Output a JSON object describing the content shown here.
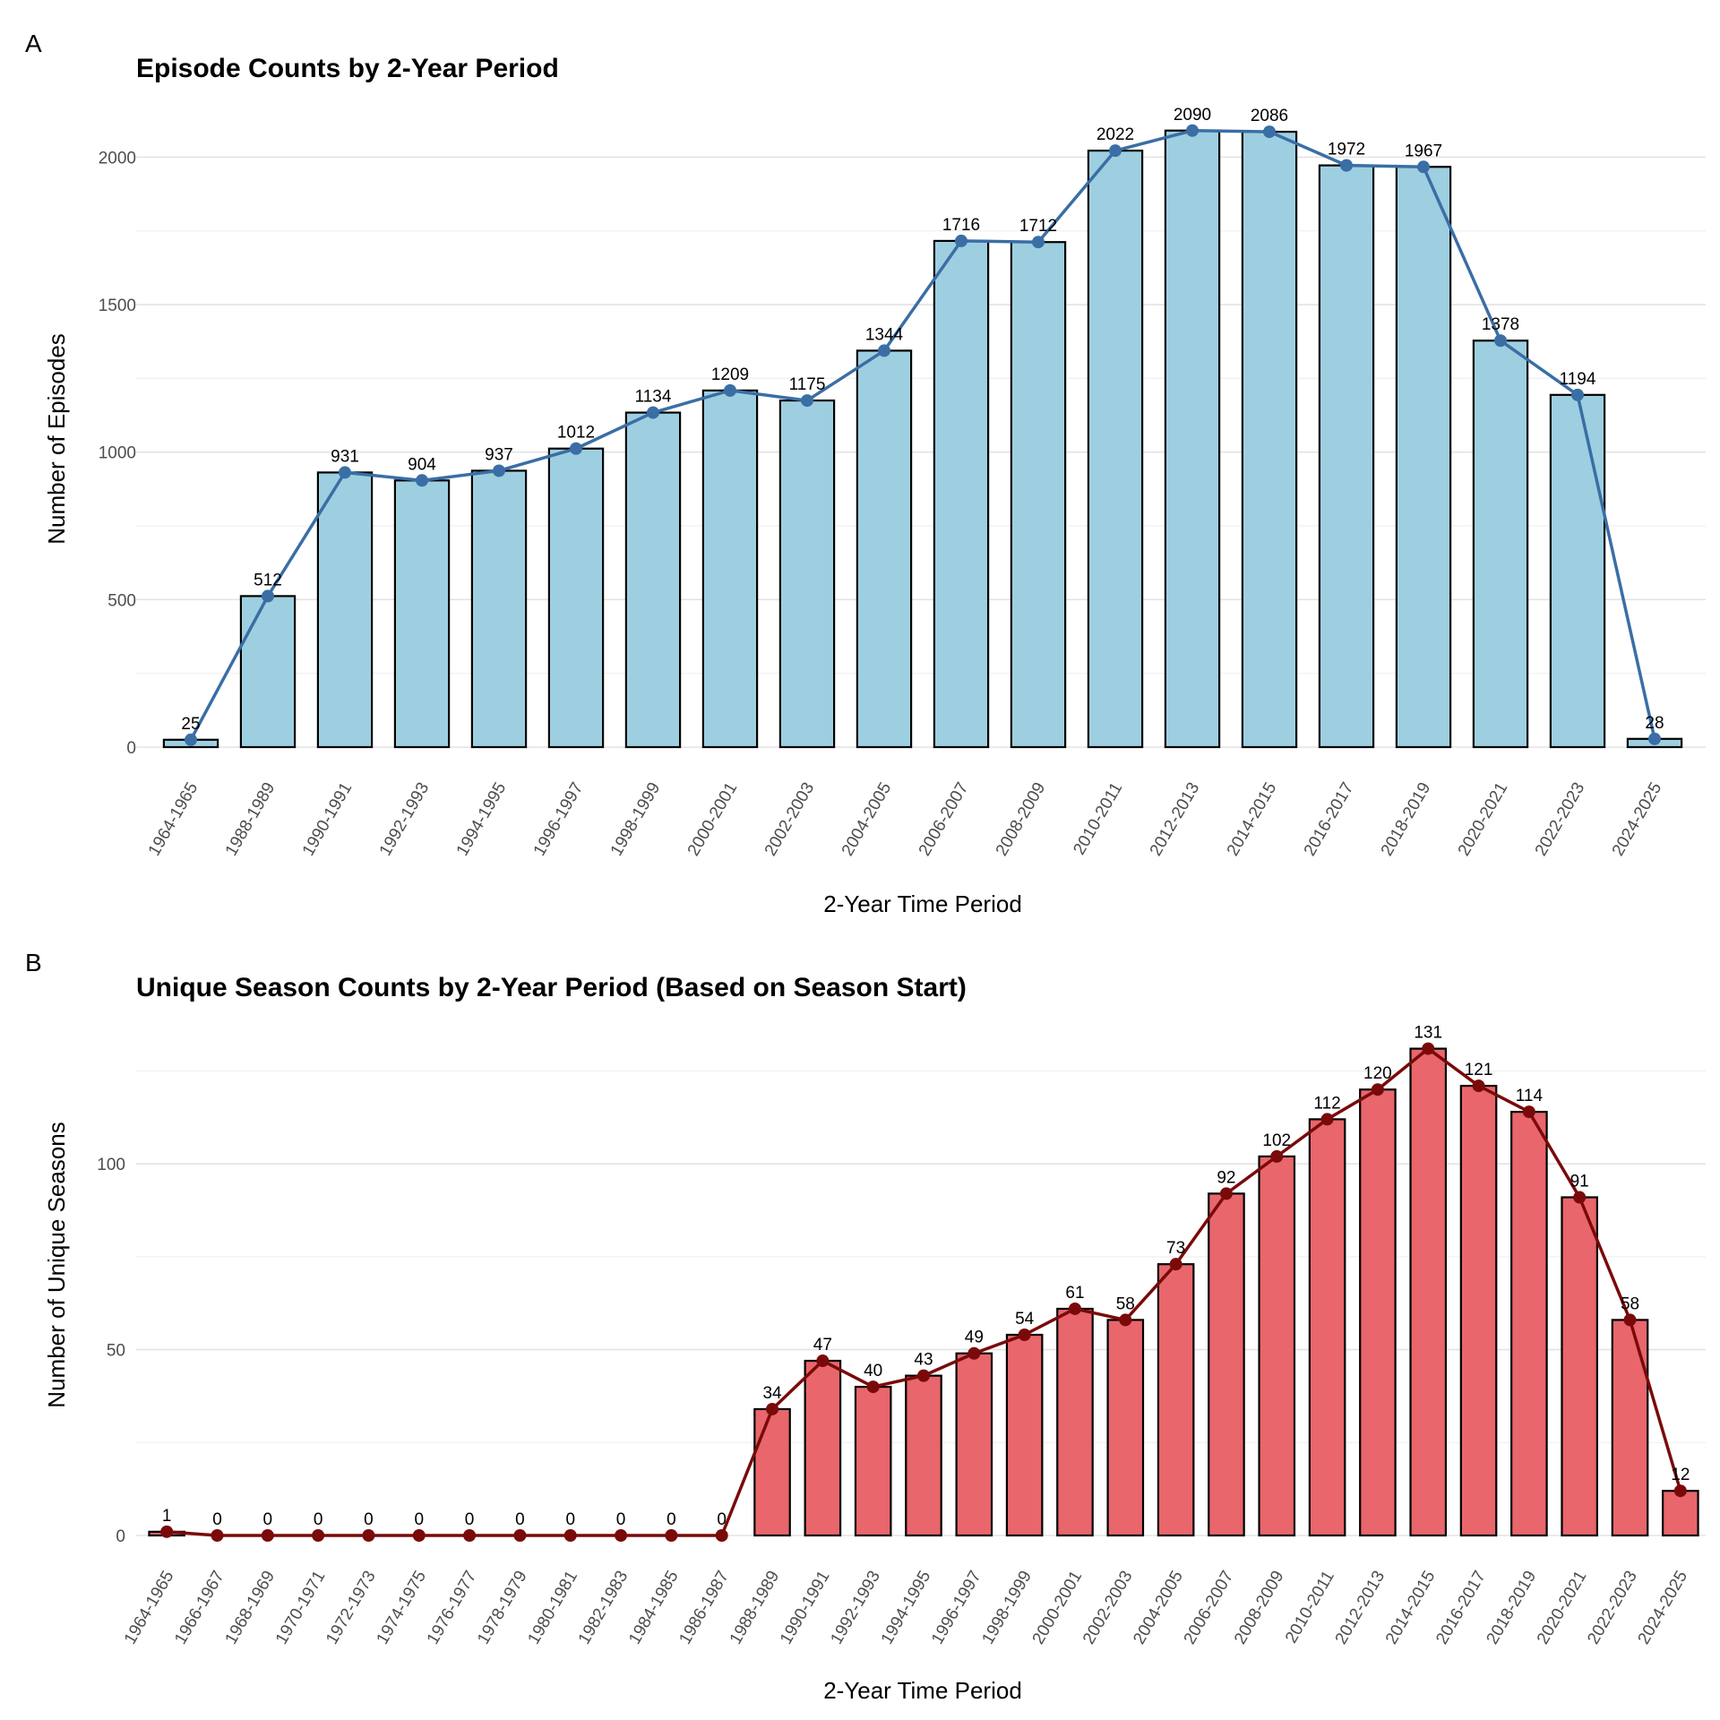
{
  "chart_data": [
    {
      "panel": "A",
      "type": "bar",
      "title": "Episode Counts by 2-Year Period",
      "xlabel": "2-Year Time Period",
      "ylabel": "Number of Episodes",
      "ylim": [
        0,
        2150
      ],
      "yticks": [
        0,
        500,
        1000,
        1500,
        2000
      ],
      "grid": true,
      "colors": {
        "bar": "#9ecfe0",
        "line": "#3a6ea5"
      },
      "categories": [
        "1964-1965",
        "1988-1989",
        "1990-1991",
        "1992-1993",
        "1994-1995",
        "1996-1997",
        "1998-1999",
        "2000-2001",
        "2002-2003",
        "2004-2005",
        "2006-2007",
        "2008-2009",
        "2010-2011",
        "2012-2013",
        "2014-2015",
        "2016-2017",
        "2018-2019",
        "2020-2021",
        "2022-2023",
        "2024-2025"
      ],
      "values": [
        25,
        512,
        931,
        904,
        937,
        1012,
        1134,
        1209,
        1175,
        1344,
        1716,
        1712,
        2022,
        2090,
        2086,
        1972,
        1967,
        1378,
        1194,
        28
      ]
    },
    {
      "panel": "B",
      "type": "bar",
      "title": "Unique Season Counts by 2-Year Period (Based on Season Start)",
      "xlabel": "2-Year Time Period",
      "ylabel": "Number of Unique Seasons",
      "ylim": [
        0,
        135
      ],
      "yticks": [
        0,
        50,
        100
      ],
      "grid": true,
      "colors": {
        "bar": "#e8666c",
        "line": "#7a0a0a"
      },
      "categories": [
        "1964-1965",
        "1966-1967",
        "1968-1969",
        "1970-1971",
        "1972-1973",
        "1974-1975",
        "1976-1977",
        "1978-1979",
        "1980-1981",
        "1982-1983",
        "1984-1985",
        "1986-1987",
        "1988-1989",
        "1990-1991",
        "1992-1993",
        "1994-1995",
        "1996-1997",
        "1998-1999",
        "2000-2001",
        "2002-2003",
        "2004-2005",
        "2006-2007",
        "2008-2009",
        "2010-2011",
        "2012-2013",
        "2014-2015",
        "2016-2017",
        "2018-2019",
        "2020-2021",
        "2022-2023",
        "2024-2025"
      ],
      "values": [
        1,
        0,
        0,
        0,
        0,
        0,
        0,
        0,
        0,
        0,
        0,
        0,
        34,
        47,
        40,
        43,
        49,
        54,
        61,
        58,
        73,
        92,
        102,
        112,
        120,
        131,
        121,
        114,
        91,
        58,
        12
      ]
    }
  ]
}
